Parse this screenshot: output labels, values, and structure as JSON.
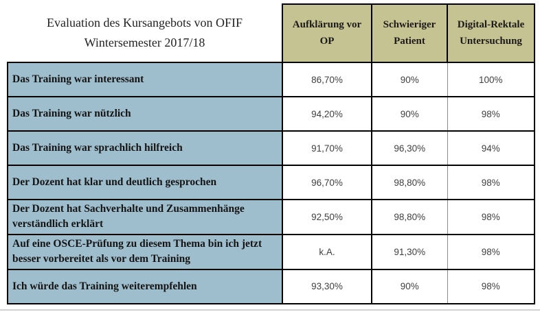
{
  "chart_data": {
    "type": "table",
    "title": "Evaluation des Kursangebots von OFIF Wintersemester 2017/18",
    "title_lines": [
      "Evaluation des Kursangebots von OFIF",
      "Wintersemester 2017/18"
    ],
    "columns": [
      "Aufklärung vor OP",
      "Schwieriger Patient",
      "Digital-Rektale Untersuchung"
    ],
    "rows": [
      {
        "label": "Das Training war interessant",
        "values": [
          "86,70%",
          "90%",
          "100%"
        ]
      },
      {
        "label": "Das Training war nützlich",
        "values": [
          "94,20%",
          "90%",
          "98%"
        ]
      },
      {
        "label": "Das Training war sprachlich hilfreich",
        "values": [
          "91,70%",
          "96,30%",
          "94%"
        ]
      },
      {
        "label": "Der Dozent hat klar und deutlich gesprochen",
        "values": [
          "96,70%",
          "98,80%",
          "98%"
        ]
      },
      {
        "label": "Der Dozent hat Sachverhalte und Zusammenhänge verständlich erklärt",
        "values": [
          "92,50%",
          "98,80%",
          "98%"
        ]
      },
      {
        "label": "Auf eine OSCE-Prüfung zu diesem Thema bin ich jetzt besser vorbereitet als vor dem Training",
        "values": [
          "k.A.",
          "91,30%",
          "98%"
        ]
      },
      {
        "label": "Ich würde das Training weiterempfehlen",
        "values": [
          "93,30%",
          "90%",
          "98%"
        ]
      }
    ],
    "layout": {
      "legend": "none",
      "grid": "table-borders"
    }
  },
  "colors": {
    "column_header_bg": "#c6c392",
    "row_label_bg": "#9fbecd",
    "value_text": "#3f3f3f",
    "border": "#000000"
  }
}
